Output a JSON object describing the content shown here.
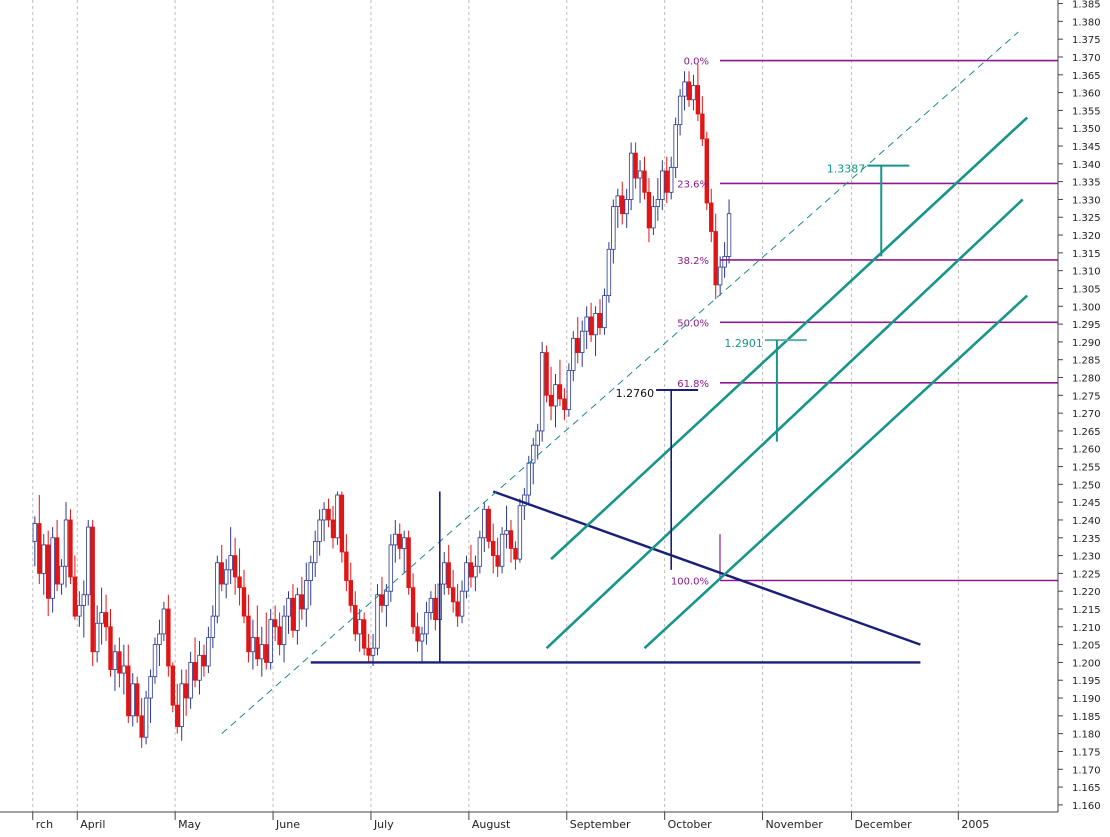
{
  "chart_data": {
    "type": "candlestick",
    "title": "",
    "xlabel": "",
    "ylabel": "",
    "ylim": [
      1.158,
      1.386
    ],
    "grid": true,
    "y_ticks": [
      "1.160",
      "1.165",
      "1.170",
      "1.175",
      "1.180",
      "1.185",
      "1.190",
      "1.195",
      "1.200",
      "1.205",
      "1.210",
      "1.215",
      "1.220",
      "1.225",
      "1.230",
      "1.235",
      "1.240",
      "1.245",
      "1.250",
      "1.255",
      "1.260",
      "1.265",
      "1.270",
      "1.275",
      "1.280",
      "1.285",
      "1.290",
      "1.295",
      "1.300",
      "1.305",
      "1.310",
      "1.315",
      "1.320",
      "1.325",
      "1.330",
      "1.335",
      "1.340",
      "1.345",
      "1.350",
      "1.355",
      "1.360",
      "1.365",
      "1.370",
      "1.375",
      "1.380",
      "1.385"
    ],
    "month_labels": [
      {
        "day": -5,
        "label": "rch"
      },
      {
        "day": 5,
        "label": "April"
      },
      {
        "day": 27,
        "label": "May"
      },
      {
        "day": 49,
        "label": "June"
      },
      {
        "day": 71,
        "label": "July"
      },
      {
        "day": 93,
        "label": "August"
      },
      {
        "day": 115,
        "label": "September"
      },
      {
        "day": 137,
        "label": "October"
      },
      {
        "day": 159,
        "label": "November"
      },
      {
        "day": 179,
        "label": "December"
      },
      {
        "day": 203,
        "label": "2005"
      }
    ],
    "fib_levels": [
      {
        "label": "0.0%",
        "value": 1.369
      },
      {
        "label": "23.6%",
        "value": 1.3345
      },
      {
        "label": "38.2%",
        "value": 1.313
      },
      {
        "label": "50.0%",
        "value": 1.2955
      },
      {
        "label": "61.8%",
        "value": 1.2785
      },
      {
        "label": "100.0%",
        "value": 1.223
      }
    ],
    "targets": [
      {
        "label": "1.2760",
        "value": 1.2765,
        "day": 138
      },
      {
        "label": "1.2901",
        "value": 1.2905,
        "day": 162
      },
      {
        "label": "1.3387",
        "value": 1.3395,
        "day": 185
      }
    ],
    "trend_lines": [
      {
        "name": "descending-triangle-top",
        "x0": 96,
        "y0": 1.248,
        "x1": 192,
        "y1": 1.205
      },
      {
        "name": "triangle-base-support",
        "x0": 55,
        "y0": 1.2,
        "x1": 192,
        "y1": 1.2
      },
      {
        "name": "dashed-upper-channel",
        "x0": 35,
        "y0": 1.18,
        "x1": 214,
        "y1": 1.377
      },
      {
        "name": "upper-channel-line",
        "x0": 109,
        "y0": 1.229,
        "x1": 216,
        "y1": 1.353
      },
      {
        "name": "middle-channel-line",
        "x0": 108,
        "y0": 1.204,
        "x1": 215,
        "y1": 1.33
      },
      {
        "name": "lower-channel-line",
        "x0": 130,
        "y0": 1.204,
        "x1": 216,
        "y1": 1.303
      }
    ],
    "candles": [
      [
        -7,
        1.234,
        1.241,
        1.227,
        1.239
      ],
      [
        -6,
        1.239,
        1.247,
        1.222,
        1.225
      ],
      [
        -5,
        1.225,
        1.236,
        1.219,
        1.233
      ],
      [
        -4,
        1.233,
        1.237,
        1.213,
        1.218
      ],
      [
        -3,
        1.218,
        1.238,
        1.214,
        1.235
      ],
      [
        -2,
        1.235,
        1.24,
        1.22,
        1.222
      ],
      [
        -1,
        1.222,
        1.229,
        1.219,
        1.227
      ],
      [
        0,
        1.227,
        1.245,
        1.221,
        1.24
      ],
      [
        1,
        1.24,
        1.243,
        1.222,
        1.224
      ],
      [
        2,
        1.224,
        1.23,
        1.212,
        1.213
      ],
      [
        3,
        1.213,
        1.22,
        1.21,
        1.216
      ],
      [
        4,
        1.216,
        1.223,
        1.207,
        1.219
      ],
      [
        5,
        1.219,
        1.24,
        1.216,
        1.238
      ],
      [
        6,
        1.238,
        1.24,
        1.199,
        1.203
      ],
      [
        7,
        1.203,
        1.216,
        1.2,
        1.211
      ],
      [
        8,
        1.211,
        1.221,
        1.205,
        1.214
      ],
      [
        9,
        1.214,
        1.219,
        1.206,
        1.21
      ],
      [
        10,
        1.21,
        1.215,
        1.196,
        1.198
      ],
      [
        11,
        1.198,
        1.205,
        1.192,
        1.203
      ],
      [
        12,
        1.203,
        1.207,
        1.193,
        1.197
      ],
      [
        13,
        1.197,
        1.205,
        1.191,
        1.199
      ],
      [
        14,
        1.199,
        1.205,
        1.183,
        1.185
      ],
      [
        15,
        1.185,
        1.197,
        1.182,
        1.194
      ],
      [
        16,
        1.194,
        1.196,
        1.183,
        1.185
      ],
      [
        17,
        1.185,
        1.19,
        1.176,
        1.179
      ],
      [
        18,
        1.179,
        1.192,
        1.177,
        1.19
      ],
      [
        19,
        1.19,
        1.198,
        1.183,
        1.196
      ],
      [
        20,
        1.196,
        1.207,
        1.194,
        1.205
      ],
      [
        21,
        1.205,
        1.212,
        1.199,
        1.208
      ],
      [
        22,
        1.208,
        1.217,
        1.206,
        1.215
      ],
      [
        23,
        1.215,
        1.219,
        1.196,
        1.199
      ],
      [
        24,
        1.199,
        1.2,
        1.186,
        1.188
      ],
      [
        25,
        1.188,
        1.194,
        1.18,
        1.182
      ],
      [
        26,
        1.182,
        1.198,
        1.178,
        1.194
      ],
      [
        27,
        1.194,
        1.198,
        1.185,
        1.19
      ],
      [
        28,
        1.19,
        1.203,
        1.187,
        1.2
      ],
      [
        29,
        1.2,
        1.207,
        1.193,
        1.195
      ],
      [
        30,
        1.195,
        1.206,
        1.191,
        1.202
      ],
      [
        31,
        1.202,
        1.205,
        1.196,
        1.199
      ],
      [
        32,
        1.199,
        1.21,
        1.197,
        1.207
      ],
      [
        33,
        1.207,
        1.216,
        1.204,
        1.213
      ],
      [
        34,
        1.213,
        1.23,
        1.211,
        1.228
      ],
      [
        35,
        1.228,
        1.233,
        1.22,
        1.222
      ],
      [
        36,
        1.222,
        1.229,
        1.218,
        1.226
      ],
      [
        37,
        1.226,
        1.238,
        1.222,
        1.23
      ],
      [
        38,
        1.23,
        1.235,
        1.219,
        1.224
      ],
      [
        39,
        1.224,
        1.232,
        1.216,
        1.221
      ],
      [
        40,
        1.221,
        1.226,
        1.211,
        1.213
      ],
      [
        41,
        1.213,
        1.219,
        1.2,
        1.203
      ],
      [
        42,
        1.203,
        1.212,
        1.198,
        1.207
      ],
      [
        43,
        1.207,
        1.216,
        1.199,
        1.201
      ],
      [
        44,
        1.201,
        1.21,
        1.196,
        1.205
      ],
      [
        45,
        1.205,
        1.214,
        1.198,
        1.2
      ],
      [
        46,
        1.2,
        1.215,
        1.198,
        1.212
      ],
      [
        47,
        1.212,
        1.216,
        1.206,
        1.21
      ],
      [
        48,
        1.21,
        1.214,
        1.202,
        1.205
      ],
      [
        49,
        1.205,
        1.216,
        1.2,
        1.213
      ],
      [
        50,
        1.213,
        1.22,
        1.208,
        1.218
      ],
      [
        51,
        1.218,
        1.222,
        1.207,
        1.209
      ],
      [
        52,
        1.209,
        1.221,
        1.205,
        1.219
      ],
      [
        53,
        1.219,
        1.224,
        1.212,
        1.215
      ],
      [
        54,
        1.215,
        1.228,
        1.21,
        1.223
      ],
      [
        55,
        1.223,
        1.23,
        1.216,
        1.228
      ],
      [
        56,
        1.228,
        1.237,
        1.224,
        1.234
      ],
      [
        57,
        1.234,
        1.243,
        1.23,
        1.24
      ],
      [
        58,
        1.24,
        1.245,
        1.234,
        1.243
      ],
      [
        59,
        1.243,
        1.246,
        1.238,
        1.24
      ],
      [
        60,
        1.24,
        1.244,
        1.232,
        1.235
      ],
      [
        61,
        1.235,
        1.248,
        1.233,
        1.247
      ],
      [
        62,
        1.247,
        1.248,
        1.228,
        1.231
      ],
      [
        63,
        1.231,
        1.236,
        1.22,
        1.223
      ],
      [
        64,
        1.223,
        1.228,
        1.214,
        1.216
      ],
      [
        65,
        1.216,
        1.22,
        1.206,
        1.208
      ],
      [
        66,
        1.208,
        1.215,
        1.203,
        1.212
      ],
      [
        67,
        1.212,
        1.214,
        1.202,
        1.204
      ],
      [
        68,
        1.204,
        1.208,
        1.2,
        1.202
      ],
      [
        69,
        1.202,
        1.208,
        1.199,
        1.204
      ],
      [
        70,
        1.204,
        1.222,
        1.202,
        1.219
      ],
      [
        71,
        1.219,
        1.224,
        1.214,
        1.216
      ],
      [
        72,
        1.216,
        1.222,
        1.21,
        1.22
      ],
      [
        73,
        1.22,
        1.236,
        1.217,
        1.233
      ],
      [
        74,
        1.233,
        1.24,
        1.228,
        1.236
      ],
      [
        75,
        1.236,
        1.239,
        1.229,
        1.232
      ],
      [
        76,
        1.232,
        1.237,
        1.225,
        1.235
      ],
      [
        77,
        1.235,
        1.237,
        1.219,
        1.221
      ],
      [
        78,
        1.221,
        1.225,
        1.208,
        1.21
      ],
      [
        79,
        1.21,
        1.214,
        1.203,
        1.206
      ],
      [
        80,
        1.206,
        1.21,
        1.2,
        1.208
      ],
      [
        81,
        1.208,
        1.217,
        1.205,
        1.214
      ],
      [
        82,
        1.214,
        1.22,
        1.212,
        1.218
      ],
      [
        83,
        1.218,
        1.222,
        1.209,
        1.212
      ],
      [
        84,
        1.212,
        1.224,
        1.21,
        1.222
      ],
      [
        85,
        1.222,
        1.231,
        1.219,
        1.228
      ],
      [
        86,
        1.228,
        1.233,
        1.219,
        1.221
      ],
      [
        87,
        1.221,
        1.226,
        1.214,
        1.217
      ],
      [
        88,
        1.217,
        1.222,
        1.21,
        1.213
      ],
      [
        89,
        1.213,
        1.223,
        1.211,
        1.22
      ],
      [
        90,
        1.22,
        1.23,
        1.218,
        1.228
      ],
      [
        91,
        1.228,
        1.233,
        1.221,
        1.224
      ],
      [
        92,
        1.224,
        1.23,
        1.22,
        1.227
      ],
      [
        93,
        1.227,
        1.237,
        1.225,
        1.235
      ],
      [
        94,
        1.235,
        1.245,
        1.231,
        1.243
      ],
      [
        95,
        1.243,
        1.244,
        1.232,
        1.234
      ],
      [
        96,
        1.234,
        1.239,
        1.225,
        1.23
      ],
      [
        97,
        1.23,
        1.235,
        1.224,
        1.227
      ],
      [
        98,
        1.227,
        1.238,
        1.225,
        1.236
      ],
      [
        99,
        1.236,
        1.244,
        1.232,
        1.237
      ],
      [
        100,
        1.237,
        1.24,
        1.228,
        1.232
      ],
      [
        101,
        1.232,
        1.234,
        1.226,
        1.229
      ],
      [
        102,
        1.229,
        1.246,
        1.228,
        1.244
      ],
      [
        103,
        1.244,
        1.249,
        1.24,
        1.247
      ],
      [
        104,
        1.247,
        1.258,
        1.244,
        1.256
      ],
      [
        105,
        1.256,
        1.263,
        1.25,
        1.261
      ],
      [
        106,
        1.261,
        1.267,
        1.257,
        1.265
      ],
      [
        107,
        1.265,
        1.29,
        1.262,
        1.287
      ],
      [
        108,
        1.287,
        1.289,
        1.273,
        1.275
      ],
      [
        109,
        1.275,
        1.283,
        1.268,
        1.272
      ],
      [
        110,
        1.272,
        1.281,
        1.266,
        1.278
      ],
      [
        111,
        1.278,
        1.285,
        1.272,
        1.274
      ],
      [
        112,
        1.274,
        1.277,
        1.268,
        1.271
      ],
      [
        113,
        1.271,
        1.284,
        1.269,
        1.282
      ],
      [
        114,
        1.282,
        1.293,
        1.279,
        1.291
      ],
      [
        115,
        1.291,
        1.297,
        1.284,
        1.287
      ],
      [
        116,
        1.287,
        1.296,
        1.283,
        1.293
      ],
      [
        117,
        1.293,
        1.3,
        1.288,
        1.297
      ],
      [
        118,
        1.297,
        1.301,
        1.29,
        1.292
      ],
      [
        119,
        1.292,
        1.3,
        1.286,
        1.298
      ],
      [
        120,
        1.298,
        1.302,
        1.292,
        1.294
      ],
      [
        121,
        1.294,
        1.305,
        1.292,
        1.303
      ],
      [
        122,
        1.303,
        1.318,
        1.301,
        1.316
      ],
      [
        123,
        1.316,
        1.33,
        1.312,
        1.328
      ],
      [
        124,
        1.328,
        1.333,
        1.322,
        1.331
      ],
      [
        125,
        1.331,
        1.335,
        1.323,
        1.326
      ],
      [
        126,
        1.326,
        1.333,
        1.322,
        1.33
      ],
      [
        127,
        1.33,
        1.346,
        1.327,
        1.343
      ],
      [
        128,
        1.343,
        1.346,
        1.333,
        1.336
      ],
      [
        129,
        1.336,
        1.341,
        1.329,
        1.338
      ],
      [
        130,
        1.338,
        1.342,
        1.33,
        1.332
      ],
      [
        131,
        1.332,
        1.336,
        1.318,
        1.322
      ],
      [
        132,
        1.322,
        1.331,
        1.32,
        1.328
      ],
      [
        133,
        1.328,
        1.336,
        1.324,
        1.33
      ],
      [
        134,
        1.33,
        1.341,
        1.327,
        1.338
      ],
      [
        135,
        1.338,
        1.342,
        1.329,
        1.332
      ],
      [
        136,
        1.332,
        1.342,
        1.33,
        1.339
      ],
      [
        137,
        1.339,
        1.353,
        1.336,
        1.351
      ],
      [
        138,
        1.351,
        1.361,
        1.348,
        1.359
      ],
      [
        139,
        1.359,
        1.366,
        1.355,
        1.363
      ],
      [
        140,
        1.363,
        1.366,
        1.356,
        1.358
      ],
      [
        141,
        1.358,
        1.365,
        1.355,
        1.362
      ],
      [
        142,
        1.362,
        1.368,
        1.352,
        1.354
      ],
      [
        143,
        1.354,
        1.359,
        1.345,
        1.347
      ],
      [
        144,
        1.347,
        1.349,
        1.327,
        1.329
      ],
      [
        145,
        1.329,
        1.333,
        1.318,
        1.321
      ],
      [
        146,
        1.321,
        1.326,
        1.302,
        1.306
      ],
      [
        147,
        1.306,
        1.314,
        1.303,
        1.311
      ],
      [
        148,
        1.311,
        1.318,
        1.308,
        1.314
      ],
      [
        149,
        1.314,
        1.33,
        1.312,
        1.326
      ]
    ]
  }
}
